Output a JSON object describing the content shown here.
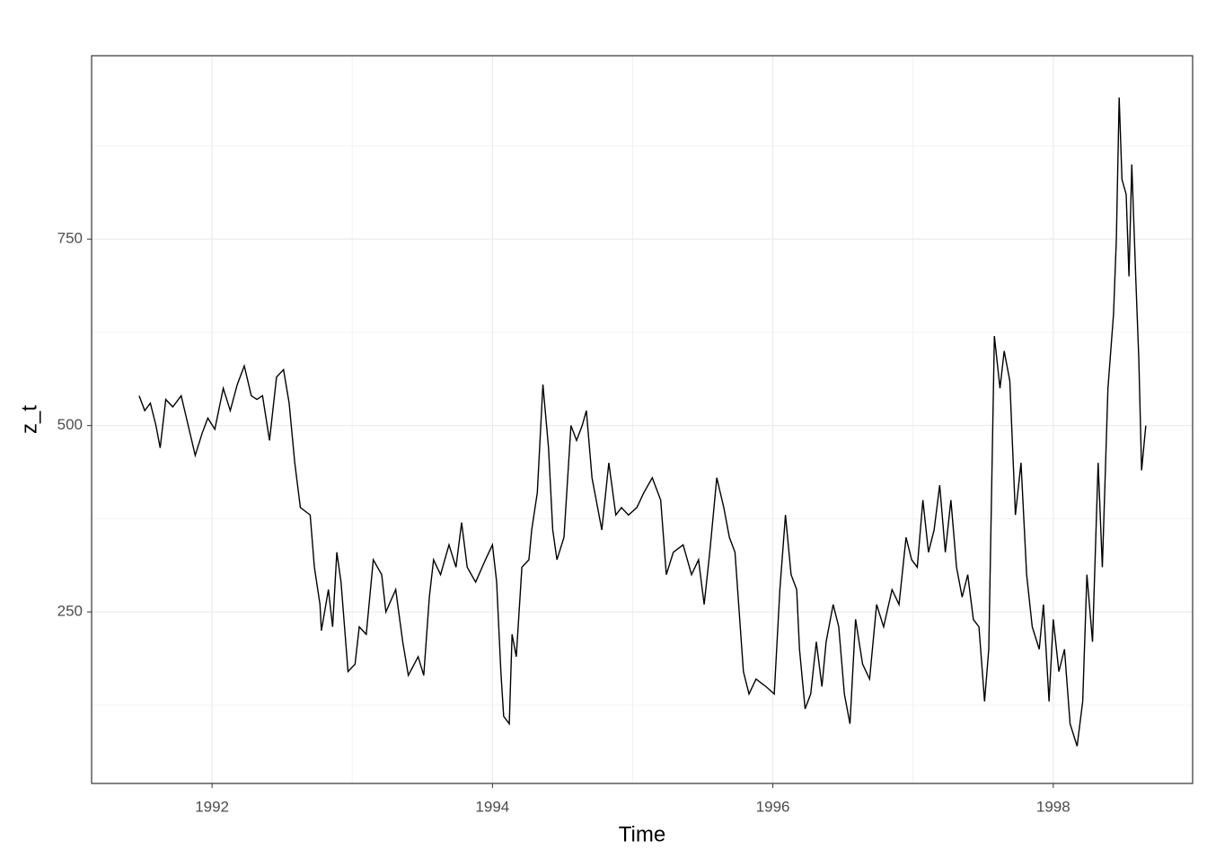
{
  "chart_data": {
    "type": "line",
    "x_label": "Time",
    "y_label": "z_t",
    "xlim": [
      1991.141,
      1998.994
    ],
    "xticks": [
      1992,
      1994,
      1996,
      1998
    ],
    "x_minor_ticks": [
      1993,
      1995,
      1997
    ],
    "ylim": [
      20,
      996
    ],
    "yticks": [
      250,
      500,
      750
    ],
    "y_minor_ticks": [
      125,
      375,
      625,
      875
    ],
    "grid": true,
    "series": [
      {
        "name": "z_t",
        "color": "#000000",
        "x": [
          1991.48,
          1991.52,
          1991.56,
          1991.6,
          1991.63,
          1991.67,
          1991.72,
          1991.78,
          1991.83,
          1991.88,
          1991.93,
          1991.97,
          1992.02,
          1992.08,
          1992.13,
          1992.18,
          1992.23,
          1992.28,
          1992.32,
          1992.36,
          1992.41,
          1992.46,
          1992.51,
          1992.55,
          1992.59,
          1992.63,
          1992.7,
          1992.73,
          1992.77,
          1992.78,
          1992.83,
          1992.86,
          1992.89,
          1992.92,
          1992.97,
          1993.02,
          1993.05,
          1993.1,
          1993.15,
          1993.21,
          1993.24,
          1993.31,
          1993.36,
          1993.4,
          1993.47,
          1993.51,
          1993.55,
          1993.58,
          1993.63,
          1993.69,
          1993.74,
          1993.78,
          1993.82,
          1993.88,
          1993.95,
          1994.0,
          1994.03,
          1994.06,
          1994.08,
          1994.12,
          1994.14,
          1994.17,
          1994.21,
          1994.26,
          1994.28,
          1994.32,
          1994.36,
          1994.4,
          1994.43,
          1994.46,
          1994.51,
          1994.56,
          1994.6,
          1994.64,
          1994.67,
          1994.71,
          1994.75,
          1994.78,
          1994.83,
          1994.88,
          1994.92,
          1994.97,
          1995.03,
          1995.08,
          1995.14,
          1995.2,
          1995.24,
          1995.29,
          1995.36,
          1995.42,
          1995.47,
          1995.51,
          1995.55,
          1995.6,
          1995.65,
          1995.69,
          1995.73,
          1995.76,
          1995.79,
          1995.83,
          1995.88,
          1995.95,
          1996.01,
          1996.05,
          1996.09,
          1996.13,
          1996.17,
          1996.19,
          1996.23,
          1996.27,
          1996.31,
          1996.35,
          1996.38,
          1996.43,
          1996.47,
          1996.51,
          1996.55,
          1996.59,
          1996.64,
          1996.69,
          1996.74,
          1996.79,
          1996.85,
          1996.9,
          1996.95,
          1996.99,
          1997.03,
          1997.07,
          1997.11,
          1997.15,
          1997.19,
          1997.23,
          1997.27,
          1997.31,
          1997.35,
          1997.39,
          1997.43,
          1997.47,
          1997.51,
          1997.54,
          1997.56,
          1997.58,
          1997.62,
          1997.65,
          1997.69,
          1997.73,
          1997.77,
          1997.81,
          1997.85,
          1997.9,
          1997.93,
          1997.97,
          1998.0,
          1998.04,
          1998.08,
          1998.12,
          1998.17,
          1998.21,
          1998.24,
          1998.28,
          1998.32,
          1998.35,
          1998.39,
          1998.43,
          1998.45,
          1998.47,
          1998.49,
          1998.52,
          1998.54,
          1998.56,
          1998.59,
          1998.61,
          1998.63,
          1998.66
        ],
        "values": [
          540,
          520,
          530,
          500,
          470,
          535,
          525,
          540,
          500,
          460,
          490,
          510,
          495,
          550,
          520,
          555,
          580,
          540,
          535,
          540,
          480,
          565,
          575,
          530,
          450,
          390,
          380,
          310,
          260,
          225,
          280,
          230,
          330,
          290,
          170,
          180,
          230,
          220,
          320,
          300,
          250,
          280,
          210,
          165,
          190,
          165,
          270,
          320,
          300,
          340,
          310,
          370,
          310,
          290,
          320,
          340,
          290,
          170,
          110,
          100,
          220,
          190,
          310,
          320,
          360,
          410,
          555,
          470,
          360,
          320,
          350,
          500,
          480,
          500,
          520,
          430,
          390,
          360,
          450,
          380,
          390,
          380,
          390,
          410,
          430,
          400,
          300,
          330,
          340,
          300,
          320,
          260,
          330,
          430,
          390,
          350,
          330,
          250,
          170,
          140,
          160,
          150,
          140,
          280,
          380,
          300,
          280,
          200,
          120,
          140,
          210,
          150,
          210,
          260,
          230,
          140,
          100,
          240,
          180,
          160,
          260,
          230,
          280,
          260,
          350,
          320,
          310,
          400,
          330,
          360,
          420,
          330,
          400,
          310,
          270,
          300,
          240,
          230,
          130,
          200,
          410,
          620,
          550,
          600,
          560,
          380,
          450,
          300,
          230,
          200,
          260,
          130,
          240,
          170,
          200,
          100,
          70,
          130,
          300,
          210,
          450,
          310,
          550,
          650,
          750,
          940,
          830,
          810,
          700,
          850,
          690,
          590,
          440,
          500
        ]
      }
    ]
  }
}
